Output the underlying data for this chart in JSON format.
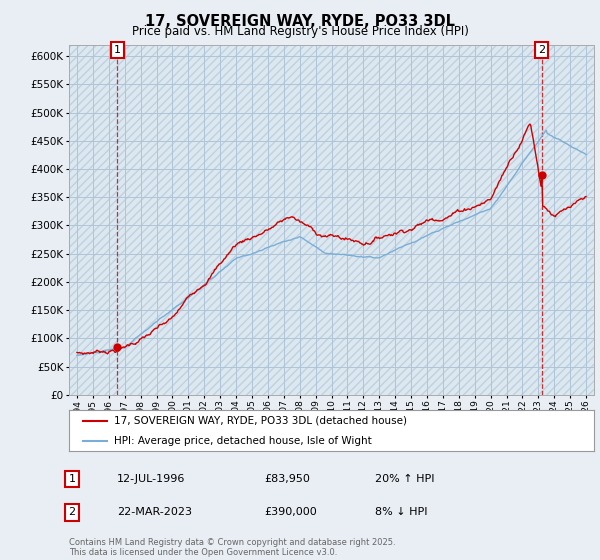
{
  "title": "17, SOVEREIGN WAY, RYDE, PO33 3DL",
  "subtitle": "Price paid vs. HM Land Registry's House Price Index (HPI)",
  "ylim": [
    0,
    620000
  ],
  "yticks": [
    0,
    50000,
    100000,
    150000,
    200000,
    250000,
    300000,
    350000,
    400000,
    450000,
    500000,
    550000,
    600000
  ],
  "xlim": [
    1993.5,
    2026.5
  ],
  "bg_color": "#e8eef4",
  "plot_bg_color": "#dce8f0",
  "grid_color": "#b0c4d8",
  "hpi_color": "#7aaed6",
  "price_color": "#cc0000",
  "dashed_color": "#cc0000",
  "marker1_year": 1996.54,
  "marker1_price": 83950,
  "marker1_label": "1",
  "marker2_year": 2023.22,
  "marker2_price": 390000,
  "marker2_label": "2",
  "legend_line1": "17, SOVEREIGN WAY, RYDE, PO33 3DL (detached house)",
  "legend_line2": "HPI: Average price, detached house, Isle of Wight",
  "annotation1_num": "1",
  "annotation1_date": "12-JUL-1996",
  "annotation1_price": "£83,950",
  "annotation1_hpi": "20% ↑ HPI",
  "annotation2_num": "2",
  "annotation2_date": "22-MAR-2023",
  "annotation2_price": "£390,000",
  "annotation2_hpi": "8% ↓ HPI",
  "footer": "Contains HM Land Registry data © Crown copyright and database right 2025.\nThis data is licensed under the Open Government Licence v3.0."
}
